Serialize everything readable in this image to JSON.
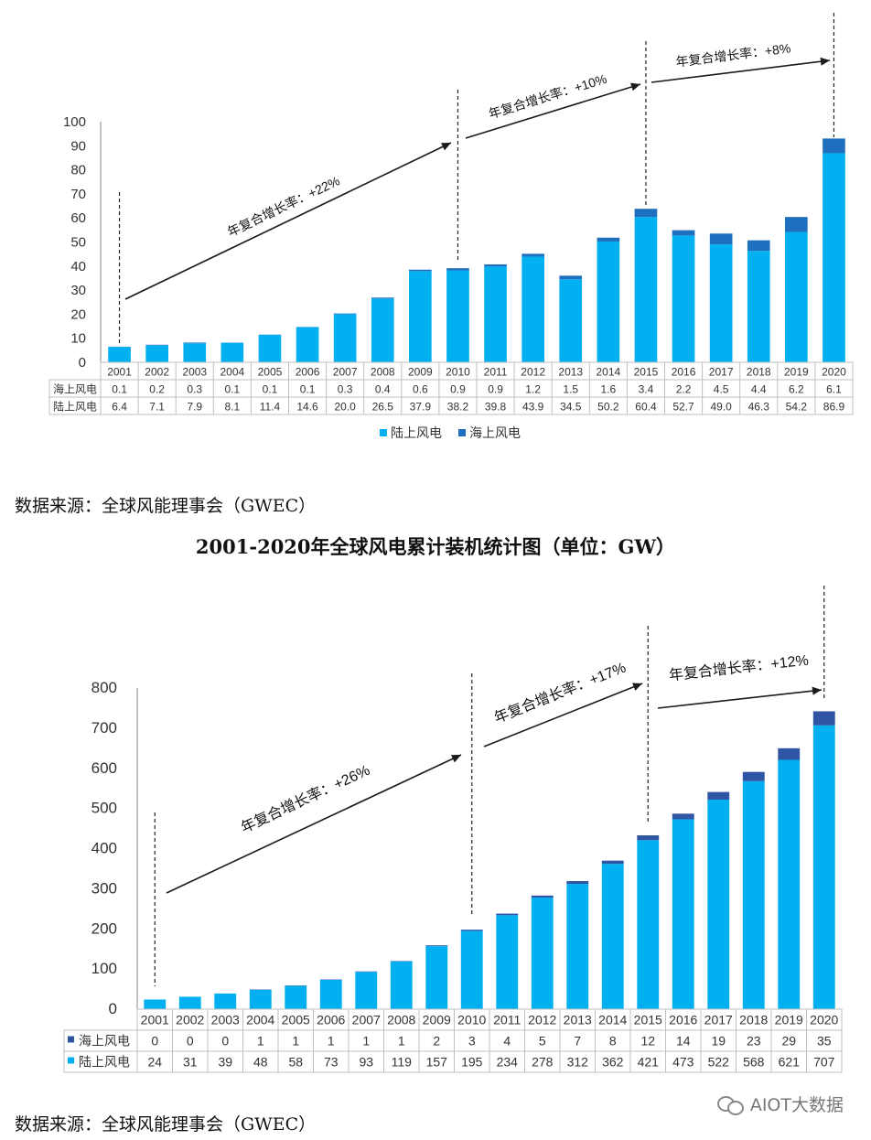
{
  "colors": {
    "onshore": "#00b0f0",
    "offshore": "#1f6fbf",
    "offshore2": "#2f55a4",
    "arrow": "#1a1a1a",
    "grid": "#bfbfbf"
  },
  "chart_data": [
    {
      "type": "bar",
      "stacked": true,
      "title": "",
      "categories": [
        "2001",
        "2002",
        "2003",
        "2004",
        "2005",
        "2006",
        "2007",
        "2008",
        "2009",
        "2010",
        "2011",
        "2012",
        "2013",
        "2014",
        "2015",
        "2016",
        "2017",
        "2018",
        "2019",
        "2020"
      ],
      "series": [
        {
          "name": "陆上风电",
          "values": [
            6.4,
            7.1,
            7.9,
            8.1,
            11.4,
            14.6,
            20.0,
            26.5,
            37.9,
            38.2,
            39.8,
            43.9,
            34.5,
            50.2,
            60.4,
            52.7,
            49.0,
            46.3,
            54.2,
            86.9
          ],
          "labels": [
            "6.4",
            "7.1",
            "7.9",
            "8.1",
            "11.4",
            "14.6",
            "20.0",
            "26.5",
            "37.9",
            "38.2",
            "39.8",
            "43.9",
            "34.5",
            "50.2",
            "60.4",
            "52.7",
            "49.0",
            "46.3",
            "54.2",
            "86.9"
          ]
        },
        {
          "name": "海上风电",
          "values": [
            0.1,
            0.2,
            0.3,
            0.1,
            0.1,
            0.1,
            0.3,
            0.4,
            0.6,
            0.9,
            0.9,
            1.2,
            1.5,
            1.6,
            3.4,
            2.2,
            4.5,
            4.4,
            6.2,
            6.1
          ],
          "labels": [
            "0.1",
            "0.2",
            "0.3",
            "0.1",
            "0.1",
            "0.1",
            "0.3",
            "0.4",
            "0.6",
            "0.9",
            "0.9",
            "1.2",
            "1.5",
            "1.6",
            "3.4",
            "2.2",
            "4.5",
            "4.4",
            "6.2",
            "6.1"
          ]
        }
      ],
      "table_rows": [
        "海上风电",
        "陆上风电"
      ],
      "yticks": [
        "0",
        "10",
        "20",
        "30",
        "40",
        "50",
        "60",
        "70",
        "80",
        "90",
        "100"
      ],
      "ylim": [
        0,
        100
      ],
      "legend": [
        "陆上风电",
        "海上风电"
      ],
      "annotations": [
        {
          "text": "年复合增长率：+22%",
          "from": "2001",
          "to": "2010"
        },
        {
          "text": "年复合增长率：+10%",
          "from": "2010",
          "to": "2015"
        },
        {
          "text": "年复合增长率：+8%",
          "from": "2015",
          "to": "2020"
        }
      ]
    },
    {
      "type": "bar",
      "stacked": true,
      "title": "2001-2020年全球风电累计装机统计图（单位：GW）",
      "categories": [
        "2001",
        "2002",
        "2003",
        "2004",
        "2005",
        "2006",
        "2007",
        "2008",
        "2009",
        "2010",
        "2011",
        "2012",
        "2013",
        "2014",
        "2015",
        "2016",
        "2017",
        "2018",
        "2019",
        "2020"
      ],
      "series": [
        {
          "name": "陆上风电",
          "values": [
            24,
            31,
            39,
            48,
            58,
            73,
            93,
            119,
            157,
            195,
            234,
            278,
            312,
            362,
            421,
            473,
            522,
            568,
            621,
            707
          ],
          "labels": [
            "24",
            "31",
            "39",
            "48",
            "58",
            "73",
            "93",
            "119",
            "157",
            "195",
            "234",
            "278",
            "312",
            "362",
            "421",
            "473",
            "522",
            "568",
            "621",
            "707"
          ]
        },
        {
          "name": "海上风电",
          "values": [
            0,
            0,
            0,
            1,
            1,
            1,
            1,
            1,
            2,
            3,
            4,
            5,
            7,
            8,
            12,
            14,
            19,
            23,
            29,
            35
          ],
          "labels": [
            "0",
            "0",
            "0",
            "1",
            "1",
            "1",
            "1",
            "1",
            "2",
            "3",
            "4",
            "5",
            "7",
            "8",
            "12",
            "14",
            "19",
            "23",
            "29",
            "35"
          ]
        }
      ],
      "table_rows": [
        "海上风电",
        "陆上风电"
      ],
      "yticks": [
        "0",
        "100",
        "200",
        "300",
        "400",
        "500",
        "600",
        "700",
        "800"
      ],
      "ylim": [
        0,
        800
      ],
      "annotations": [
        {
          "text": "年复合增长率：+26%",
          "from": "2001",
          "to": "2010"
        },
        {
          "text": "年复合增长率：+17%",
          "from": "2010",
          "to": "2015"
        },
        {
          "text": "年复合增长率：+12%",
          "from": "2015",
          "to": "2020"
        }
      ]
    }
  ],
  "source_note_1": "数据来源：全球风能理事会（GWEC）",
  "source_note_2": "数据来源：全球风能理事会（GWEC）",
  "chart2_title": "2001-2020年全球风电累计装机统计图（单位：GW）",
  "watermark": "AIOT大数据"
}
